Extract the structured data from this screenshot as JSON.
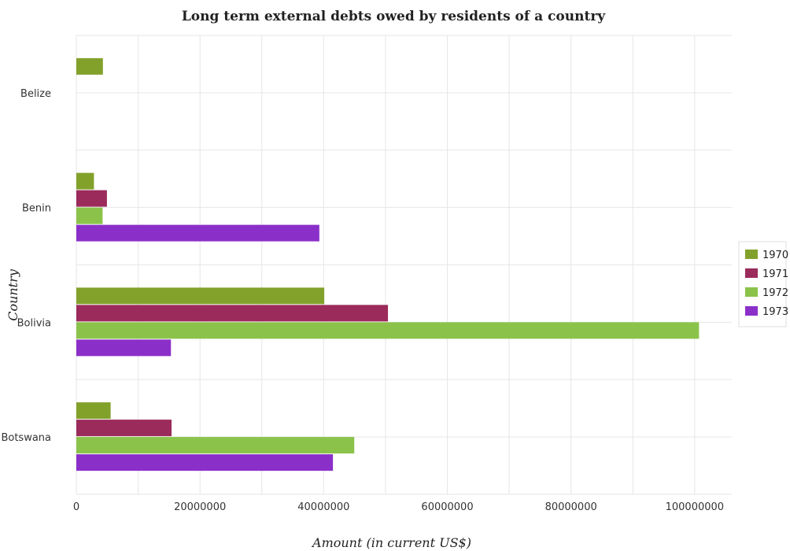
{
  "chart_data": {
    "type": "bar",
    "orientation": "horizontal",
    "title": "Long term external debts owed by residents of a country",
    "xlabel": "Amount (in current US$)",
    "ylabel": "Country",
    "xlim": [
      0,
      106000000
    ],
    "x_ticks": [
      0,
      20000000,
      40000000,
      60000000,
      80000000,
      100000000
    ],
    "x_tick_labels": [
      "0",
      "20000000",
      "40000000",
      "60000000",
      "80000000",
      "100000000"
    ],
    "categories": [
      "Belize",
      "Benin",
      "Bolivia",
      "Botswana"
    ],
    "series": [
      {
        "name": "1970",
        "color": "#82a12b",
        "values": [
          4300000,
          2850000,
          40100000,
          5550000
        ]
      },
      {
        "name": "1971",
        "color": "#9b2b5a",
        "values": [
          0,
          4950000,
          50400000,
          15400000
        ]
      },
      {
        "name": "1972",
        "color": "#8bc34a",
        "values": [
          0,
          4250000,
          100700000,
          44950000
        ]
      },
      {
        "name": "1973",
        "color": "#8b2fc9",
        "values": [
          0,
          39300000,
          15300000,
          41500000
        ]
      }
    ],
    "grid": true,
    "legend_position": "right"
  }
}
